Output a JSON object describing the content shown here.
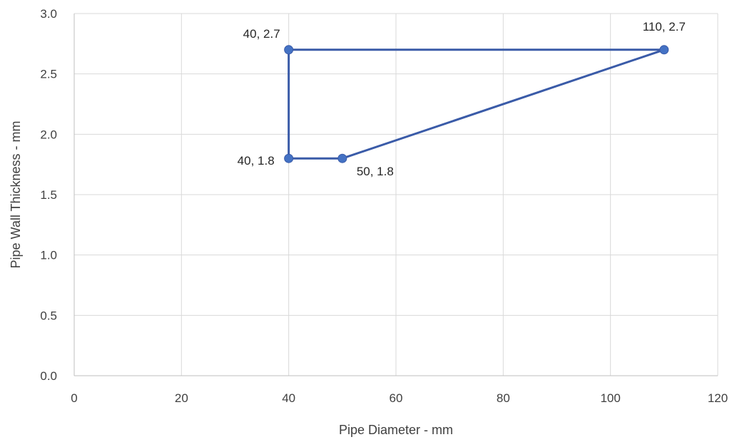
{
  "chart_data": {
    "type": "scatter",
    "title": "",
    "xlabel": "Pipe Diameter - mm",
    "ylabel": "Pipe Wall Thickness - mm",
    "xlim": [
      0,
      120
    ],
    "ylim": [
      0,
      3.0
    ],
    "x_ticks": [
      0,
      20,
      40,
      60,
      80,
      100,
      120
    ],
    "y_ticks": [
      0.0,
      0.5,
      1.0,
      1.5,
      2.0,
      2.5,
      3.0
    ],
    "x_tick_labels": [
      "0",
      "20",
      "40",
      "60",
      "80",
      "100",
      "120"
    ],
    "y_tick_labels": [
      "0.0",
      "0.5",
      "1.0",
      "1.5",
      "2.0",
      "2.5",
      "3.0"
    ],
    "grid": true,
    "legend": "none",
    "series": [
      {
        "style": "lines-and-markers",
        "color": "#4472c4",
        "points": [
          {
            "x": 40,
            "y": 1.8,
            "label": "40, 1.8",
            "label_position": "left"
          },
          {
            "x": 40,
            "y": 2.7,
            "label": "40, 2.7",
            "label_position": "above-left"
          },
          {
            "x": 110,
            "y": 2.7,
            "label": "110, 2.7",
            "label_position": "above"
          },
          {
            "x": 50,
            "y": 1.8,
            "label": "50, 1.8",
            "label_position": "below-right"
          },
          {
            "x": 40,
            "y": 1.8
          }
        ]
      }
    ]
  }
}
